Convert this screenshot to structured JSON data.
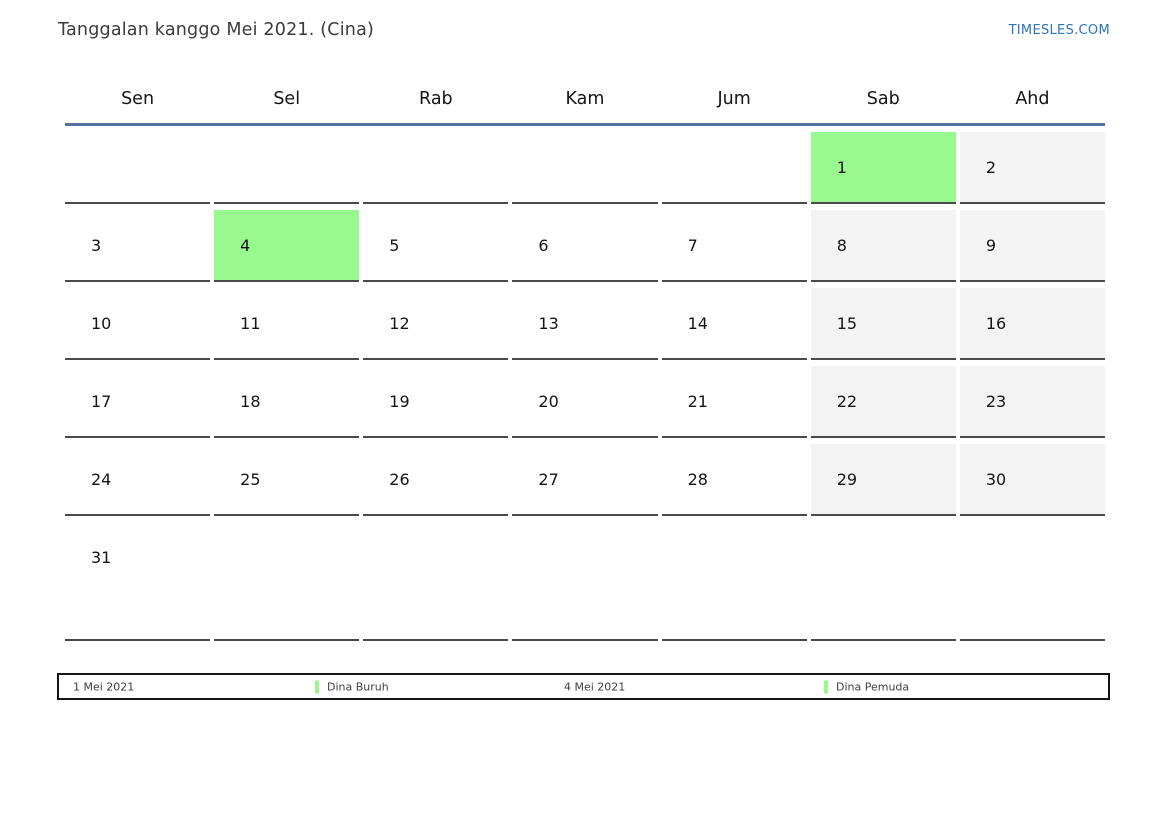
{
  "header": {
    "title": "Tanggalan kanggo Mei 2021. (Cina)",
    "site_link": "TIMESLES.COM"
  },
  "calendar": {
    "weekdays": [
      "Sen",
      "Sel",
      "Rab",
      "Kam",
      "Jum",
      "Sab",
      "Ahd"
    ],
    "weeks": [
      [
        {
          "day": "",
          "type": "empty"
        },
        {
          "day": "",
          "type": "empty"
        },
        {
          "day": "",
          "type": "empty"
        },
        {
          "day": "",
          "type": "empty"
        },
        {
          "day": "",
          "type": "empty"
        },
        {
          "day": "1",
          "type": "holiday"
        },
        {
          "day": "2",
          "type": "weekend"
        }
      ],
      [
        {
          "day": "3",
          "type": "day"
        },
        {
          "day": "4",
          "type": "holiday"
        },
        {
          "day": "5",
          "type": "day"
        },
        {
          "day": "6",
          "type": "day"
        },
        {
          "day": "7",
          "type": "day"
        },
        {
          "day": "8",
          "type": "weekend"
        },
        {
          "day": "9",
          "type": "weekend"
        }
      ],
      [
        {
          "day": "10",
          "type": "day"
        },
        {
          "day": "11",
          "type": "day"
        },
        {
          "day": "12",
          "type": "day"
        },
        {
          "day": "13",
          "type": "day"
        },
        {
          "day": "14",
          "type": "day"
        },
        {
          "day": "15",
          "type": "weekend"
        },
        {
          "day": "16",
          "type": "weekend"
        }
      ],
      [
        {
          "day": "17",
          "type": "day"
        },
        {
          "day": "18",
          "type": "day"
        },
        {
          "day": "19",
          "type": "day"
        },
        {
          "day": "20",
          "type": "day"
        },
        {
          "day": "21",
          "type": "day"
        },
        {
          "day": "22",
          "type": "weekend"
        },
        {
          "day": "23",
          "type": "weekend"
        }
      ],
      [
        {
          "day": "24",
          "type": "day"
        },
        {
          "day": "25",
          "type": "day"
        },
        {
          "day": "26",
          "type": "day"
        },
        {
          "day": "27",
          "type": "day"
        },
        {
          "day": "28",
          "type": "day"
        },
        {
          "day": "29",
          "type": "weekend"
        },
        {
          "day": "30",
          "type": "weekend"
        }
      ],
      [
        {
          "day": "31",
          "type": "day"
        },
        {
          "day": "",
          "type": "empty"
        },
        {
          "day": "",
          "type": "empty"
        },
        {
          "day": "",
          "type": "empty"
        },
        {
          "day": "",
          "type": "empty"
        },
        {
          "day": "",
          "type": "empty"
        },
        {
          "day": "",
          "type": "empty"
        }
      ]
    ]
  },
  "legend": {
    "entries": [
      {
        "date": "1 Mei 2021",
        "event": "Dina Buruh"
      },
      {
        "date": "4 Mei 2021",
        "event": "Dina Pemuda"
      }
    ]
  },
  "colors": {
    "holiday_green": "#98fa8e",
    "weekend_gray": "#f3f3f3",
    "header_line_blue": "#53739d",
    "link_blue": "#2d74b7",
    "cell_border": "#4a4a4a"
  }
}
